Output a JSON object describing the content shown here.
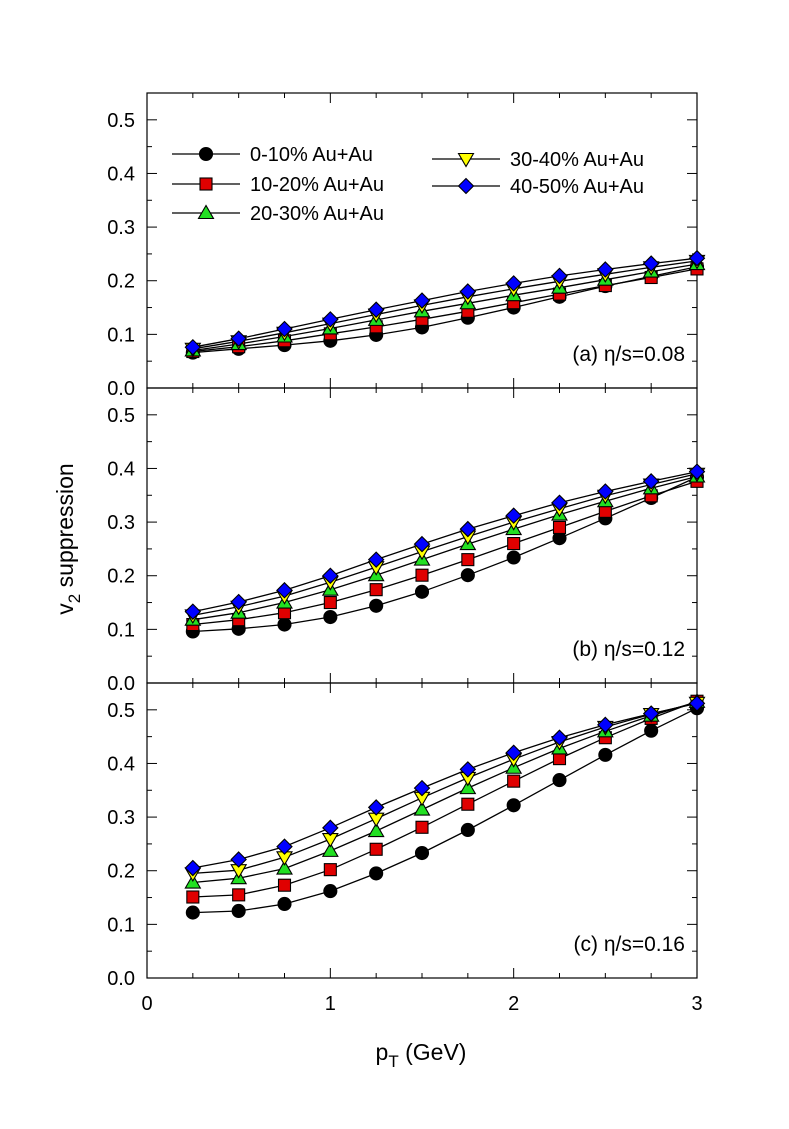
{
  "chart_data": {
    "type": "line",
    "xlabel_main": "p",
    "xlabel_sub": "T",
    "xlabel_rest": " (GeV)",
    "ylabel_main": "v",
    "ylabel_sub": "2",
    "ylabel_rest": " suppression",
    "xlim": [
      0,
      3
    ],
    "x_ticks": [
      "0",
      "1",
      "2",
      "3"
    ],
    "ylim": [
      0,
      0.55
    ],
    "y_ticks": [
      "0.0",
      "0.1",
      "0.2",
      "0.3",
      "0.4",
      "0.5"
    ],
    "x": [
      0.25,
      0.5,
      0.75,
      1.0,
      1.25,
      1.5,
      1.75,
      2.0,
      2.25,
      2.5,
      2.75,
      3.0
    ],
    "legend": [
      {
        "label": "0-10% Au+Au",
        "marker": "circle",
        "color": "#000000"
      },
      {
        "label": "10-20% Au+Au",
        "marker": "square",
        "color": "#e00000"
      },
      {
        "label": "20-30% Au+Au",
        "marker": "triangle-up",
        "color": "#22e022"
      },
      {
        "label": "30-40% Au+Au",
        "marker": "triangle-down",
        "color": "#ffff00"
      },
      {
        "label": "40-50% Au+Au",
        "marker": "diamond",
        "color": "#0000ff"
      }
    ],
    "panels": [
      {
        "annotation": "(a) η/s=0.08",
        "series": [
          {
            "name": "0-10% Au+Au",
            "values": [
              0.066,
              0.073,
              0.08,
              0.088,
              0.099,
              0.113,
              0.131,
              0.15,
              0.17,
              0.19,
              0.208,
              0.226
            ]
          },
          {
            "name": "10-20% Au+Au",
            "values": [
              0.068,
              0.077,
              0.088,
              0.101,
              0.114,
              0.128,
              0.143,
              0.159,
              0.175,
              0.191,
              0.206,
              0.222
            ]
          },
          {
            "name": "20-30% Au+Au",
            "values": [
              0.07,
              0.082,
              0.096,
              0.111,
              0.127,
              0.143,
              0.158,
              0.173,
              0.187,
              0.202,
              0.217,
              0.231
            ]
          },
          {
            "name": "30-40% Au+Au",
            "values": [
              0.073,
              0.087,
              0.103,
              0.12,
              0.137,
              0.154,
              0.17,
              0.185,
              0.199,
              0.212,
              0.225,
              0.237
            ]
          },
          {
            "name": "40-50% Au+Au",
            "values": [
              0.076,
              0.092,
              0.11,
              0.128,
              0.146,
              0.163,
              0.18,
              0.195,
              0.209,
              0.221,
              0.232,
              0.242
            ]
          }
        ]
      },
      {
        "annotation": "(b) η/s=0.12",
        "series": [
          {
            "name": "0-10% Au+Au",
            "values": [
              0.096,
              0.101,
              0.109,
              0.123,
              0.144,
              0.17,
              0.201,
              0.234,
              0.27,
              0.307,
              0.345,
              0.384
            ]
          },
          {
            "name": "10-20% Au+Au",
            "values": [
              0.109,
              0.118,
              0.131,
              0.15,
              0.174,
              0.201,
              0.23,
              0.26,
              0.29,
              0.32,
              0.349,
              0.376
            ]
          },
          {
            "name": "20-30% Au+Au",
            "values": [
              0.118,
              0.131,
              0.15,
              0.174,
              0.201,
              0.23,
              0.259,
              0.287,
              0.314,
              0.339,
              0.363,
              0.385
            ]
          },
          {
            "name": "30-40% Au+Au",
            "values": [
              0.126,
              0.142,
              0.162,
              0.188,
              0.216,
              0.245,
              0.273,
              0.3,
              0.325,
              0.349,
              0.37,
              0.39
            ]
          },
          {
            "name": "40-50% Au+Au",
            "values": [
              0.133,
              0.151,
              0.173,
              0.2,
              0.23,
              0.259,
              0.287,
              0.312,
              0.336,
              0.357,
              0.376,
              0.394
            ]
          }
        ]
      },
      {
        "annotation": "(c) η/s=0.16",
        "series": [
          {
            "name": "0-10% Au+Au",
            "values": [
              0.122,
              0.125,
              0.138,
              0.162,
              0.195,
              0.233,
              0.276,
              0.322,
              0.369,
              0.416,
              0.461,
              0.503
            ]
          },
          {
            "name": "10-20% Au+Au",
            "values": [
              0.151,
              0.155,
              0.173,
              0.202,
              0.24,
              0.281,
              0.324,
              0.367,
              0.409,
              0.448,
              0.484,
              0.516
            ]
          },
          {
            "name": "20-30% Au+Au",
            "values": [
              0.178,
              0.186,
              0.204,
              0.237,
              0.274,
              0.314,
              0.354,
              0.392,
              0.428,
              0.46,
              0.489,
              0.515
            ]
          },
          {
            "name": "30-40% Au+Au",
            "values": [
              0.195,
              0.201,
              0.225,
              0.259,
              0.297,
              0.336,
              0.373,
              0.408,
              0.44,
              0.468,
              0.492,
              0.513
            ]
          },
          {
            "name": "40-50% Au+Au",
            "values": [
              0.205,
              0.221,
              0.245,
              0.28,
              0.318,
              0.354,
              0.389,
              0.42,
              0.448,
              0.472,
              0.493,
              0.512
            ]
          }
        ]
      }
    ]
  }
}
